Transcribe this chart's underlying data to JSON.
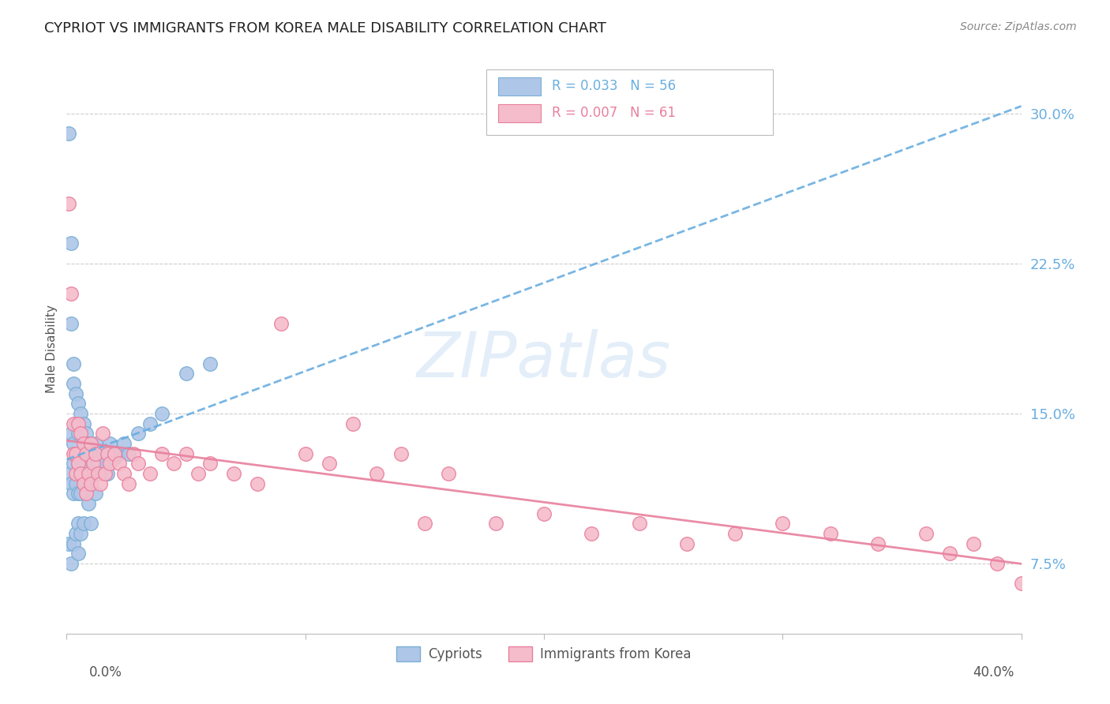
{
  "title": "CYPRIOT VS IMMIGRANTS FROM KOREA MALE DISABILITY CORRELATION CHART",
  "source": "Source: ZipAtlas.com",
  "ylabel": "Male Disability",
  "xlim": [
    0.0,
    0.4
  ],
  "ylim": [
    0.04,
    0.325
  ],
  "ytick_positions": [
    0.075,
    0.15,
    0.225,
    0.3
  ],
  "ytick_labels": [
    "7.5%",
    "15.0%",
    "22.5%",
    "30.0%"
  ],
  "blue_R": 0.033,
  "blue_N": 56,
  "pink_R": 0.007,
  "pink_N": 61,
  "blue_color": "#aec6e8",
  "blue_edge": "#7aafd4",
  "pink_color": "#f5bccb",
  "pink_edge": "#e8809e",
  "blue_line_color": "#6aaee0",
  "pink_line_color": "#e8809e",
  "legend_label_blue": "Cypriots",
  "legend_label_pink": "Immigrants from Korea",
  "watermark": "ZIPatlas",
  "blue_x": [
    0.001,
    0.001,
    0.001,
    0.002,
    0.002,
    0.002,
    0.002,
    0.002,
    0.003,
    0.003,
    0.003,
    0.003,
    0.003,
    0.003,
    0.004,
    0.004,
    0.004,
    0.004,
    0.005,
    0.005,
    0.005,
    0.005,
    0.005,
    0.005,
    0.006,
    0.006,
    0.006,
    0.006,
    0.007,
    0.007,
    0.007,
    0.008,
    0.008,
    0.009,
    0.009,
    0.01,
    0.01,
    0.01,
    0.011,
    0.012,
    0.012,
    0.013,
    0.014,
    0.015,
    0.016,
    0.017,
    0.018,
    0.02,
    0.022,
    0.024,
    0.026,
    0.03,
    0.035,
    0.04,
    0.05,
    0.06
  ],
  "blue_y": [
    0.29,
    0.12,
    0.085,
    0.235,
    0.195,
    0.14,
    0.115,
    0.075,
    0.175,
    0.165,
    0.135,
    0.125,
    0.11,
    0.085,
    0.16,
    0.145,
    0.115,
    0.09,
    0.155,
    0.14,
    0.125,
    0.11,
    0.095,
    0.08,
    0.15,
    0.13,
    0.11,
    0.09,
    0.145,
    0.125,
    0.095,
    0.14,
    0.115,
    0.135,
    0.105,
    0.135,
    0.12,
    0.095,
    0.13,
    0.135,
    0.11,
    0.125,
    0.12,
    0.13,
    0.125,
    0.12,
    0.135,
    0.128,
    0.13,
    0.135,
    0.13,
    0.14,
    0.145,
    0.15,
    0.17,
    0.175
  ],
  "pink_x": [
    0.001,
    0.002,
    0.003,
    0.003,
    0.004,
    0.004,
    0.005,
    0.005,
    0.006,
    0.006,
    0.007,
    0.007,
    0.008,
    0.008,
    0.009,
    0.01,
    0.01,
    0.011,
    0.012,
    0.013,
    0.014,
    0.015,
    0.016,
    0.017,
    0.018,
    0.02,
    0.022,
    0.024,
    0.026,
    0.028,
    0.03,
    0.035,
    0.04,
    0.045,
    0.05,
    0.055,
    0.06,
    0.07,
    0.08,
    0.09,
    0.1,
    0.11,
    0.12,
    0.13,
    0.14,
    0.15,
    0.16,
    0.18,
    0.2,
    0.22,
    0.24,
    0.26,
    0.28,
    0.3,
    0.32,
    0.34,
    0.36,
    0.37,
    0.38,
    0.39,
    0.4
  ],
  "pink_y": [
    0.255,
    0.21,
    0.13,
    0.145,
    0.13,
    0.12,
    0.145,
    0.125,
    0.14,
    0.12,
    0.135,
    0.115,
    0.13,
    0.11,
    0.12,
    0.135,
    0.115,
    0.125,
    0.13,
    0.12,
    0.115,
    0.14,
    0.12,
    0.13,
    0.125,
    0.13,
    0.125,
    0.12,
    0.115,
    0.13,
    0.125,
    0.12,
    0.13,
    0.125,
    0.13,
    0.12,
    0.125,
    0.12,
    0.115,
    0.195,
    0.13,
    0.125,
    0.145,
    0.12,
    0.13,
    0.095,
    0.12,
    0.095,
    0.1,
    0.09,
    0.095,
    0.085,
    0.09,
    0.095,
    0.09,
    0.085,
    0.09,
    0.08,
    0.085,
    0.075,
    0.065
  ]
}
